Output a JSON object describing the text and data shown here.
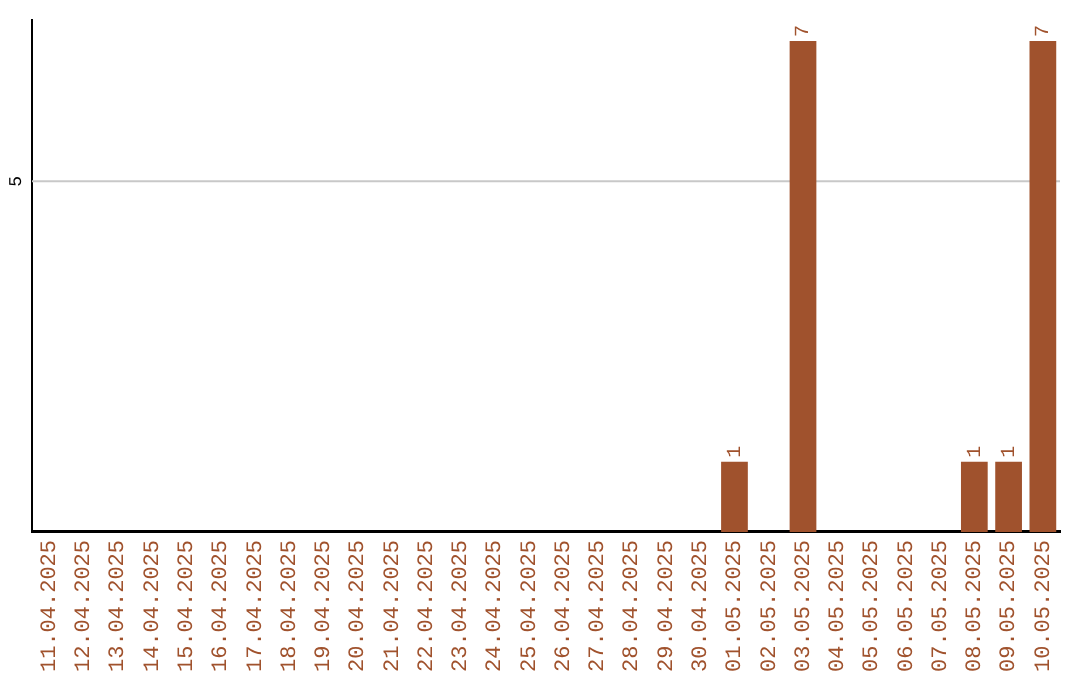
{
  "chart_data": {
    "type": "bar",
    "categories": [
      "11.04.2025",
      "12.04.2025",
      "13.04.2025",
      "14.04.2025",
      "15.04.2025",
      "16.04.2025",
      "17.04.2025",
      "18.04.2025",
      "19.04.2025",
      "20.04.2025",
      "21.04.2025",
      "22.04.2025",
      "23.04.2025",
      "24.04.2025",
      "25.04.2025",
      "26.04.2025",
      "27.04.2025",
      "28.04.2025",
      "29.04.2025",
      "30.04.2025",
      "01.05.2025",
      "02.05.2025",
      "03.05.2025",
      "04.05.2025",
      "05.05.2025",
      "06.05.2025",
      "07.05.2025",
      "08.05.2025",
      "09.05.2025",
      "10.05.2025"
    ],
    "values": [
      null,
      null,
      null,
      null,
      null,
      null,
      null,
      null,
      null,
      null,
      null,
      null,
      null,
      null,
      null,
      null,
      null,
      null,
      null,
      null,
      1,
      null,
      7,
      null,
      null,
      null,
      null,
      1,
      1,
      7
    ],
    "data_labels": true,
    "color": "#a0522d",
    "ylim": [
      0,
      7.3
    ],
    "ref_lines": [
      {
        "axis": "y",
        "value": 5,
        "label": "5",
        "color": "#c8c8c8"
      }
    ],
    "grid": false,
    "legend": false
  }
}
